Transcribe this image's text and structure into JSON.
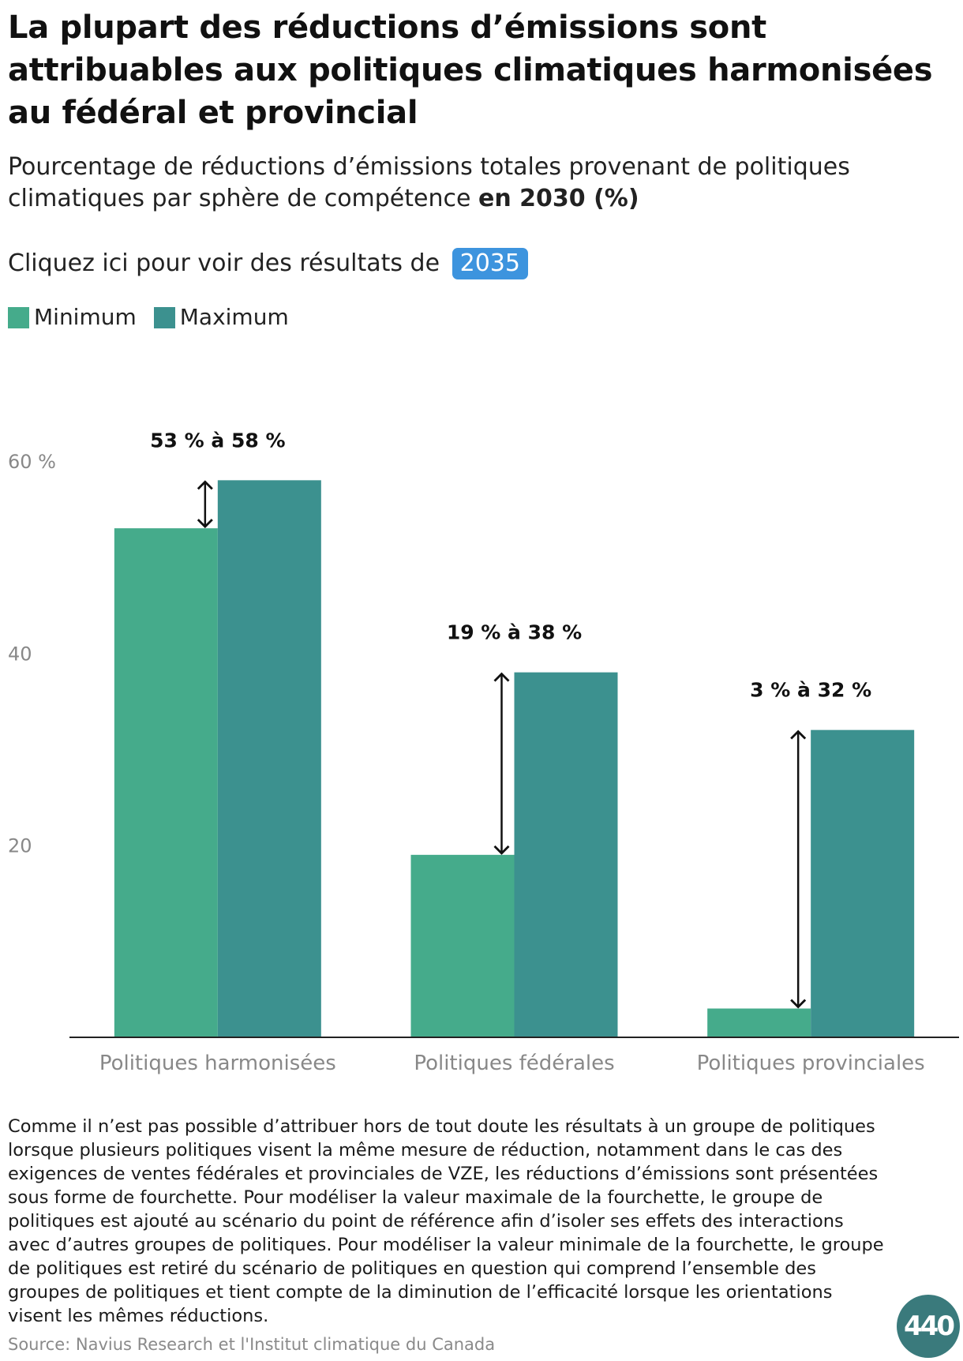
{
  "header": {
    "title": "La plupart des réductions d’émissions sont attribuables aux politiques climatiques harmonisées au fédéral et provincial",
    "subtitle_main": "Pourcentage de réductions d’émissions totales provenant de politiques climatiques par sphère de compétence ",
    "subtitle_bold": "en 2030 (%)"
  },
  "toggle": {
    "label": "Cliquez ici pour voir des résultats de ",
    "button_label": "2035"
  },
  "legend": [
    {
      "label": "Minimum",
      "color": "#45ab8b"
    },
    {
      "label": "Maximum",
      "color": "#3c918f"
    }
  ],
  "chart_data": {
    "type": "bar",
    "categories": [
      "Politiques harmonisées",
      "Politiques fédérales",
      "Politiques provinciales"
    ],
    "series": [
      {
        "name": "Minimum",
        "values": [
          53,
          19,
          3
        ]
      },
      {
        "name": "Maximum",
        "values": [
          58,
          38,
          32
        ]
      }
    ],
    "range_labels": [
      "53 % à 58 %",
      "19 % à 38 %",
      "3 % à 32 %"
    ],
    "y_ticks": [
      {
        "value": 20,
        "label": "20"
      },
      {
        "value": 40,
        "label": "40"
      },
      {
        "value": 60,
        "label": "60 %"
      }
    ],
    "ylim": [
      0,
      60
    ],
    "grid": false,
    "legend_position": "top-left",
    "colors": {
      "minimum": "#45ab8b",
      "maximum": "#3c918f",
      "arrow": "#111111",
      "axis": "#222222",
      "tick_label": "#888888"
    }
  },
  "footnote": "Comme il n’est pas possible d’attribuer hors de tout doute les résultats à un groupe de politiques lorsque plusieurs politiques visent la même mesure de réduction, notamment dans le cas des exigences de ventes fédérales et provinciales de VZE, les réductions d’émissions sont présentées sous forme de fourchette. Pour modéliser la valeur maximale de la fourchette, le groupe de politiques est ajouté au scénario du point de référence afin d’isoler ses effets des interactions avec d’autres groupes de politiques. Pour modéliser la valeur minimale de la fourchette, le groupe de politiques est retiré du scénario de politiques en question qui comprend l’ensemble des groupes de politiques et tient compte de la diminution de l’efficacité lorsque les orientations visent les mêmes réductions.",
  "source": "Source: Navius Research et l'Institut climatique du Canada",
  "logo": {
    "text": "440"
  }
}
